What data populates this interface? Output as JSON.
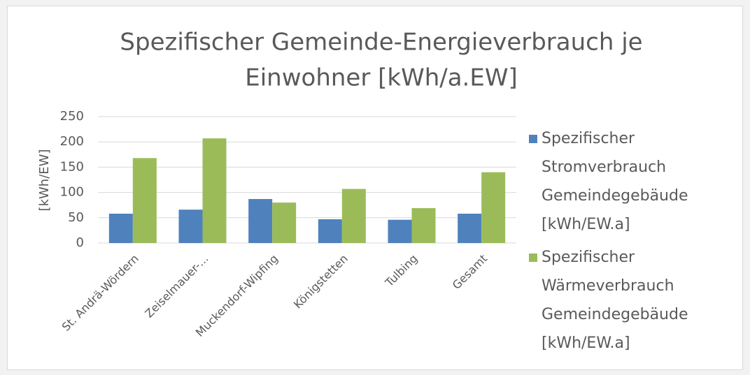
{
  "chart_data": {
    "type": "bar",
    "title": [
      "Spezifischer Gemeinde-Energieverbrauch je",
      "Einwohner [kWh/a.EW]"
    ],
    "y_label": "[kWh/EW]",
    "categories": [
      "St. Andrä-Wördern",
      "Zeiselmauer-...",
      "Muckendorf-Wipfing",
      "Königstetten",
      "Tulbing",
      "Gesamt"
    ],
    "series": [
      {
        "name": "Spezifischer Stromverbrauch Gemeindegebäude [kWh/EW.a]",
        "color": "#4f81bd",
        "values": [
          58,
          66,
          87,
          47,
          46,
          58
        ]
      },
      {
        "name": "Spezifischer Wärmeverbrauch Gemeindegebäude [kWh/EW.a]",
        "color": "#9bbb59",
        "values": [
          168,
          207,
          80,
          107,
          69,
          140
        ]
      }
    ],
    "ylim": [
      0,
      250
    ],
    "yticks": [
      0,
      50,
      100,
      150,
      200,
      250
    ],
    "grid": true,
    "legend": "right"
  }
}
